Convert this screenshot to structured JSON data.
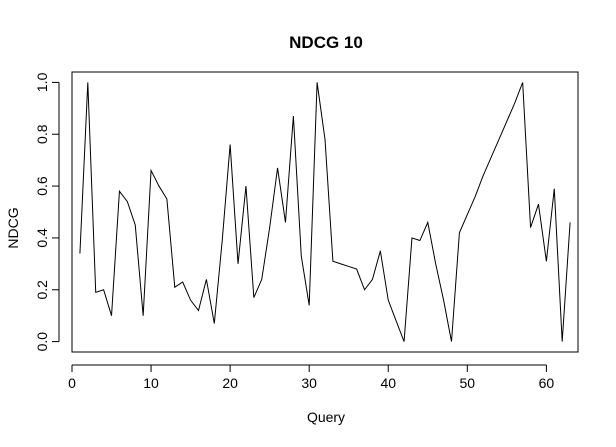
{
  "chart_data": {
    "type": "line",
    "title": "NDCG 10",
    "xlabel": "Query",
    "ylabel": "NDCG",
    "xlim": [
      0,
      64
    ],
    "ylim": [
      -0.04,
      1.04
    ],
    "x_ticks": [
      0,
      10,
      20,
      30,
      40,
      50,
      60
    ],
    "y_ticks": [
      0.0,
      0.2,
      0.4,
      0.6,
      0.8,
      1.0
    ],
    "x_tick_labels": [
      "0",
      "10",
      "20",
      "30",
      "40",
      "50",
      "60"
    ],
    "y_tick_labels": [
      "0.0",
      "0.2",
      "0.4",
      "0.6",
      "0.8",
      "1.0"
    ],
    "grid": false,
    "line_color": "#000000",
    "series": [
      {
        "x": [
          1,
          2,
          3,
          4,
          5,
          6,
          7,
          8,
          9,
          10,
          11,
          12,
          13,
          14,
          15,
          16,
          17,
          18,
          19,
          20,
          21,
          22,
          23,
          24,
          25,
          26,
          27,
          28,
          29,
          30,
          31,
          32,
          33,
          34,
          35,
          36,
          37,
          38,
          39,
          40,
          41,
          42,
          43,
          44,
          45,
          46,
          47,
          48,
          49,
          50,
          51,
          52,
          53,
          54,
          55,
          56,
          57,
          58,
          59,
          60,
          61,
          62,
          63
        ],
        "values": [
          0.34,
          1.0,
          0.19,
          0.2,
          0.1,
          0.58,
          0.54,
          0.45,
          0.1,
          0.66,
          0.6,
          0.55,
          0.21,
          0.23,
          0.16,
          0.12,
          0.24,
          0.07,
          0.39,
          0.76,
          0.3,
          0.6,
          0.17,
          0.24,
          0.44,
          0.67,
          0.46,
          0.87,
          0.33,
          0.14,
          1.0,
          0.78,
          0.31,
          0.3,
          0.29,
          0.28,
          0.2,
          0.24,
          0.35,
          0.16,
          0.08,
          0.0,
          0.4,
          0.39,
          0.46,
          0.3,
          0.16,
          0.0,
          0.42,
          0.49,
          0.56,
          0.64,
          0.71,
          0.78,
          0.85,
          0.92,
          1.0,
          0.44,
          0.53,
          0.31,
          0.59,
          0.0,
          0.46
        ]
      }
    ]
  }
}
